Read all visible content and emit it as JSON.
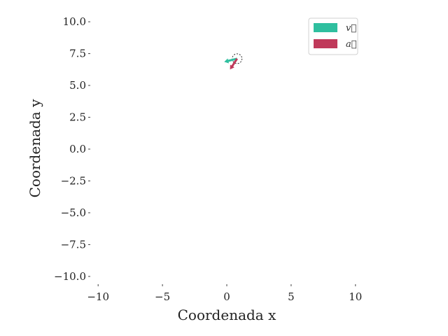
{
  "chart_data": {
    "type": "scatter",
    "xlabel": "Coordenada x",
    "ylabel": "Coordenada y",
    "xlim": [
      -10.5,
      10.5
    ],
    "ylim": [
      -10.5,
      10.5
    ],
    "x_ticks": [
      -10,
      -5,
      0,
      5,
      10
    ],
    "y_ticks": [
      10.0,
      7.5,
      5.0,
      2.5,
      0.0,
      -2.5,
      -5.0,
      -7.5,
      -10.0
    ],
    "x_tick_labels": [
      "−10",
      "−5",
      "0",
      "5",
      "10"
    ],
    "y_tick_labels": [
      "10.0",
      "7.5",
      "5.0",
      "2.5",
      "0.0",
      "−2.5",
      "−5.0",
      "−7.5",
      "−10.0"
    ],
    "grid": false,
    "legend_position": "top-right",
    "particle": {
      "x": 0.8,
      "y": 7.1
    },
    "vectors": [
      {
        "name": "v⃗",
        "color": "#2fbf9f",
        "dx": -1.0,
        "dy": -0.25
      },
      {
        "name": "a⃗",
        "color": "#c0395a",
        "dx": -0.55,
        "dy": -0.85
      }
    ]
  }
}
